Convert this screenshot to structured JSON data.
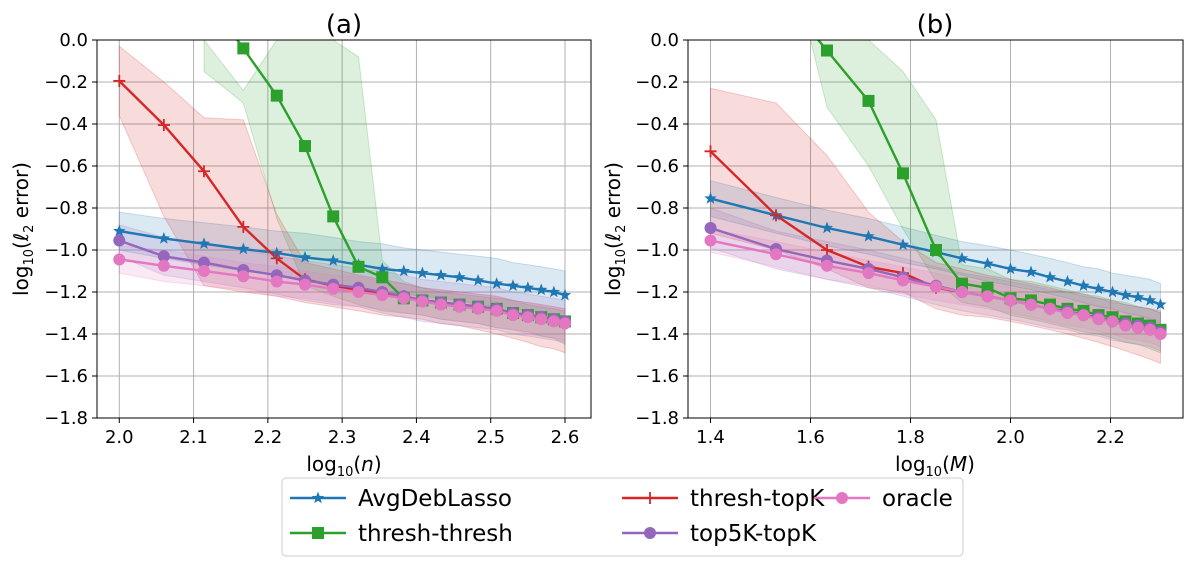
{
  "chart_data": [
    {
      "type": "line",
      "title": "(a)",
      "xlabel": "log10(n)",
      "ylabel": "log10(ℓ2 error)",
      "xlim": [
        1.97,
        2.635
      ],
      "ylim": [
        -1.8,
        0.0
      ],
      "xticks": [
        2.0,
        2.1,
        2.2,
        2.3,
        2.4,
        2.5,
        2.6
      ],
      "xtick_labels": [
        "2.0",
        "2.1",
        "2.2",
        "2.3",
        "2.4",
        "2.5",
        "2.6"
      ],
      "yticks": [
        0.0,
        -0.2,
        -0.4,
        -0.6,
        -0.8,
        -1.0,
        -1.2,
        -1.4,
        -1.6,
        -1.8
      ],
      "ytick_labels": [
        "0.0",
        "−0.2",
        "−0.4",
        "−0.6",
        "−0.8",
        "−1.0",
        "−1.2",
        "−1.4",
        "−1.6",
        "−1.8"
      ],
      "grid": true,
      "series": [
        {
          "name": "AvgDebLasso",
          "marker": "star",
          "x": [
            2.0,
            2.06,
            2.114,
            2.167,
            2.212,
            2.25,
            2.288,
            2.322,
            2.354,
            2.383,
            2.408,
            2.433,
            2.458,
            2.483,
            2.508,
            2.53,
            2.55,
            2.568,
            2.585,
            2.6
          ],
          "y": [
            -0.91,
            -0.945,
            -0.97,
            -0.995,
            -1.015,
            -1.035,
            -1.05,
            -1.07,
            -1.09,
            -1.1,
            -1.11,
            -1.12,
            -1.13,
            -1.145,
            -1.16,
            -1.17,
            -1.18,
            -1.19,
            -1.2,
            -1.215
          ],
          "band_upper": [
            -0.82,
            -0.85,
            -0.87,
            -0.89,
            -0.91,
            -0.92,
            -0.94,
            -0.96,
            -0.97,
            -0.99,
            -1.0,
            -1.01,
            -1.02,
            -1.03,
            -1.04,
            -1.06,
            -1.07,
            -1.08,
            -1.09,
            -1.1
          ],
          "band_lower": [
            -1.0,
            -1.04,
            -1.07,
            -1.1,
            -1.12,
            -1.15,
            -1.16,
            -1.18,
            -1.2,
            -1.21,
            -1.22,
            -1.23,
            -1.24,
            -1.26,
            -1.27,
            -1.28,
            -1.29,
            -1.3,
            -1.31,
            -1.32
          ]
        },
        {
          "name": "thresh-thresh",
          "marker": "square",
          "x": [
            2.167,
            2.212,
            2.25,
            2.288,
            2.322,
            2.354,
            2.383,
            2.408,
            2.433,
            2.458,
            2.483,
            2.508,
            2.53,
            2.55,
            2.568,
            2.585,
            2.6
          ],
          "y": [
            -0.04,
            -0.265,
            -0.505,
            -0.84,
            -1.08,
            -1.13,
            -1.23,
            -1.24,
            -1.25,
            -1.26,
            -1.27,
            -1.28,
            -1.3,
            -1.31,
            -1.32,
            -1.33,
            -1.34
          ],
          "extends_above_top": true,
          "band_x": [
            2.114,
            2.167,
            2.212,
            2.25,
            2.288,
            2.322,
            2.354,
            2.383,
            2.408,
            2.433,
            2.458,
            2.483,
            2.508,
            2.53,
            2.55,
            2.568,
            2.585,
            2.6
          ],
          "band_upper": [
            0.0,
            -0.24,
            0.0,
            0.0,
            0.0,
            -0.08,
            -1.05,
            -1.15,
            -1.18,
            -1.2,
            -1.21,
            -1.22,
            -1.23,
            -1.24,
            -1.26,
            -1.27,
            -1.28,
            -1.29
          ],
          "band_lower": [
            -0.15,
            -0.3,
            -0.85,
            -1.17,
            -1.22,
            -1.26,
            -1.29,
            -1.3,
            -1.31,
            -1.33,
            -1.34,
            -1.35,
            -1.37,
            -1.38,
            -1.39,
            -1.41,
            -1.42,
            -1.45
          ]
        },
        {
          "name": "thresh-topK",
          "marker": "plus",
          "x": [
            2.0,
            2.06,
            2.114,
            2.167,
            2.212,
            2.25,
            2.288,
            2.322,
            2.354,
            2.383,
            2.408,
            2.433,
            2.458,
            2.483,
            2.508,
            2.53,
            2.55,
            2.568,
            2.585,
            2.6
          ],
          "y": [
            -0.195,
            -0.405,
            -0.625,
            -0.89,
            -1.04,
            -1.14,
            -1.17,
            -1.19,
            -1.21,
            -1.22,
            -1.24,
            -1.25,
            -1.26,
            -1.27,
            -1.28,
            -1.3,
            -1.31,
            -1.32,
            -1.33,
            -1.34
          ],
          "band_upper": [
            -0.03,
            -0.2,
            -0.37,
            -0.38,
            -0.83,
            -1.06,
            -1.09,
            -1.12,
            -1.14,
            -1.16,
            -1.18,
            -1.19,
            -1.2,
            -1.21,
            -1.22,
            -1.24,
            -1.25,
            -1.26,
            -1.27,
            -1.28
          ],
          "band_lower": [
            -0.36,
            -0.84,
            -1.17,
            -1.2,
            -1.22,
            -1.25,
            -1.27,
            -1.29,
            -1.31,
            -1.32,
            -1.33,
            -1.35,
            -1.36,
            -1.38,
            -1.4,
            -1.42,
            -1.44,
            -1.46,
            -1.47,
            -1.49
          ]
        },
        {
          "name": "top5K-topK",
          "marker": "circle",
          "x": [
            2.0,
            2.06,
            2.114,
            2.167,
            2.212,
            2.25,
            2.288,
            2.322,
            2.354,
            2.383,
            2.408,
            2.433,
            2.458,
            2.483,
            2.508,
            2.53,
            2.55,
            2.568,
            2.585,
            2.6
          ],
          "y": [
            -0.955,
            -1.03,
            -1.06,
            -1.095,
            -1.12,
            -1.145,
            -1.165,
            -1.18,
            -1.2,
            -1.22,
            -1.24,
            -1.25,
            -1.26,
            -1.27,
            -1.28,
            -1.3,
            -1.31,
            -1.32,
            -1.33,
            -1.34
          ],
          "band_upper": [
            -0.88,
            -0.94,
            -0.97,
            -1.0,
            -1.03,
            -1.05,
            -1.07,
            -1.09,
            -1.1,
            -1.12,
            -1.14,
            -1.15,
            -1.16,
            -1.17,
            -1.18,
            -1.2,
            -1.21,
            -1.22,
            -1.23,
            -1.24
          ],
          "band_lower": [
            -1.03,
            -1.12,
            -1.15,
            -1.18,
            -1.21,
            -1.24,
            -1.26,
            -1.27,
            -1.3,
            -1.32,
            -1.34,
            -1.35,
            -1.36,
            -1.37,
            -1.38,
            -1.4,
            -1.41,
            -1.42,
            -1.43,
            -1.44
          ]
        },
        {
          "name": "oracle",
          "marker": "circle",
          "x": [
            2.0,
            2.06,
            2.114,
            2.167,
            2.212,
            2.25,
            2.288,
            2.322,
            2.354,
            2.383,
            2.408,
            2.433,
            2.458,
            2.483,
            2.508,
            2.53,
            2.55,
            2.568,
            2.585,
            2.6
          ],
          "y": [
            -1.045,
            -1.075,
            -1.1,
            -1.125,
            -1.15,
            -1.165,
            -1.185,
            -1.2,
            -1.215,
            -1.23,
            -1.245,
            -1.26,
            -1.27,
            -1.28,
            -1.29,
            -1.31,
            -1.32,
            -1.33,
            -1.34,
            -1.35
          ],
          "band_upper": [
            -0.98,
            -1.0,
            -1.03,
            -1.06,
            -1.08,
            -1.1,
            -1.12,
            -1.13,
            -1.15,
            -1.16,
            -1.18,
            -1.19,
            -1.2,
            -1.21,
            -1.22,
            -1.24,
            -1.25,
            -1.26,
            -1.27,
            -1.28
          ],
          "band_lower": [
            -1.11,
            -1.15,
            -1.17,
            -1.19,
            -1.22,
            -1.23,
            -1.25,
            -1.27,
            -1.28,
            -1.3,
            -1.31,
            -1.33,
            -1.34,
            -1.35,
            -1.37,
            -1.38,
            -1.4,
            -1.41,
            -1.42,
            -1.43
          ]
        }
      ]
    },
    {
      "type": "line",
      "title": "(b)",
      "xlabel": "log10(M)",
      "ylabel": "log10(ℓ2 error)",
      "xlim": [
        1.355,
        2.345
      ],
      "ylim": [
        -1.8,
        0.0
      ],
      "xticks": [
        1.4,
        1.6,
        1.8,
        2.0,
        2.2
      ],
      "xtick_labels": [
        "1.4",
        "1.6",
        "1.8",
        "2.0",
        "2.2"
      ],
      "yticks": [
        0.0,
        -0.2,
        -0.4,
        -0.6,
        -0.8,
        -1.0,
        -1.2,
        -1.4,
        -1.6,
        -1.8
      ],
      "ytick_labels": [
        "0.0",
        "−0.2",
        "−0.4",
        "−0.6",
        "−0.8",
        "−1.0",
        "−1.2",
        "−1.4",
        "−1.6",
        "−1.8"
      ],
      "grid": true,
      "series": [
        {
          "name": "AvgDebLasso",
          "marker": "star",
          "x": [
            1.4,
            1.531,
            1.633,
            1.716,
            1.785,
            1.851,
            1.903,
            1.954,
            2.0,
            2.041,
            2.079,
            2.114,
            2.146,
            2.176,
            2.204,
            2.23,
            2.255,
            2.279,
            2.3
          ],
          "y": [
            -0.755,
            -0.835,
            -0.895,
            -0.935,
            -0.975,
            -1.01,
            -1.04,
            -1.065,
            -1.09,
            -1.105,
            -1.13,
            -1.15,
            -1.17,
            -1.185,
            -1.2,
            -1.215,
            -1.225,
            -1.24,
            -1.26
          ],
          "band_upper": [
            -0.67,
            -0.75,
            -0.81,
            -0.85,
            -0.89,
            -0.93,
            -0.96,
            -0.98,
            -1.0,
            -1.02,
            -1.04,
            -1.06,
            -1.08,
            -1.09,
            -1.11,
            -1.12,
            -1.13,
            -1.14,
            -1.16
          ],
          "band_lower": [
            -0.84,
            -0.92,
            -0.98,
            -1.02,
            -1.06,
            -1.09,
            -1.12,
            -1.15,
            -1.17,
            -1.19,
            -1.21,
            -1.23,
            -1.25,
            -1.27,
            -1.28,
            -1.3,
            -1.31,
            -1.33,
            -1.35
          ]
        },
        {
          "name": "thresh-thresh",
          "marker": "square",
          "x": [
            1.633,
            1.716,
            1.785,
            1.851,
            1.903,
            1.954,
            2.0,
            2.041,
            2.079,
            2.114,
            2.146,
            2.176,
            2.204,
            2.23,
            2.255,
            2.279,
            2.3
          ],
          "y": [
            -0.05,
            -0.29,
            -0.635,
            -1.0,
            -1.16,
            -1.18,
            -1.23,
            -1.24,
            -1.26,
            -1.28,
            -1.29,
            -1.31,
            -1.32,
            -1.34,
            -1.35,
            -1.36,
            -1.38
          ],
          "extends_above_top": true,
          "band_x": [
            1.6,
            1.633,
            1.716,
            1.785,
            1.851,
            1.903,
            1.954,
            2.0,
            2.041,
            2.079,
            2.114,
            2.146,
            2.176,
            2.204,
            2.23,
            2.255,
            2.279,
            2.3
          ],
          "band_upper": [
            0.0,
            0.0,
            0.0,
            -0.15,
            -0.38,
            -1.07,
            -1.09,
            -1.14,
            -1.15,
            -1.17,
            -1.19,
            -1.21,
            -1.22,
            -1.24,
            -1.25,
            -1.27,
            -1.28,
            -1.3
          ],
          "band_lower": [
            0.0,
            -0.32,
            -0.6,
            -0.9,
            -1.15,
            -1.25,
            -1.27,
            -1.31,
            -1.33,
            -1.35,
            -1.37,
            -1.39,
            -1.4,
            -1.42,
            -1.44,
            -1.45,
            -1.47,
            -1.49
          ]
        },
        {
          "name": "thresh-topK",
          "marker": "plus",
          "x": [
            1.4,
            1.531,
            1.633,
            1.716,
            1.785,
            1.851,
            1.903,
            1.954,
            2.0,
            2.041,
            2.079,
            2.114,
            2.146,
            2.176,
            2.204,
            2.23,
            2.255,
            2.279,
            2.3
          ],
          "y": [
            -0.53,
            -0.835,
            -1.0,
            -1.08,
            -1.11,
            -1.18,
            -1.2,
            -1.22,
            -1.24,
            -1.26,
            -1.28,
            -1.29,
            -1.31,
            -1.32,
            -1.34,
            -1.35,
            -1.36,
            -1.37,
            -1.39
          ],
          "band_upper": [
            -0.23,
            -0.3,
            -0.55,
            -0.82,
            -0.96,
            -1.06,
            -1.09,
            -1.12,
            -1.14,
            -1.16,
            -1.18,
            -1.2,
            -1.21,
            -1.23,
            -1.24,
            -1.26,
            -1.27,
            -1.28,
            -1.29
          ],
          "band_lower": [
            -0.92,
            -1.0,
            -1.09,
            -1.18,
            -1.2,
            -1.28,
            -1.31,
            -1.32,
            -1.34,
            -1.36,
            -1.38,
            -1.4,
            -1.42,
            -1.44,
            -1.46,
            -1.48,
            -1.5,
            -1.52,
            -1.54
          ]
        },
        {
          "name": "top5K-topK",
          "marker": "circle",
          "x": [
            1.4,
            1.531,
            1.633,
            1.716,
            1.785,
            1.851,
            1.903,
            1.954,
            2.0,
            2.041,
            2.079,
            2.114,
            2.146,
            2.176,
            2.204,
            2.23,
            2.255,
            2.279,
            2.3
          ],
          "y": [
            -0.895,
            -0.995,
            -1.05,
            -1.09,
            -1.13,
            -1.17,
            -1.2,
            -1.22,
            -1.24,
            -1.26,
            -1.28,
            -1.29,
            -1.31,
            -1.32,
            -1.34,
            -1.35,
            -1.36,
            -1.37,
            -1.39
          ],
          "band_upper": [
            -0.8,
            -0.91,
            -0.96,
            -1.0,
            -1.04,
            -1.08,
            -1.11,
            -1.13,
            -1.15,
            -1.17,
            -1.19,
            -1.2,
            -1.22,
            -1.23,
            -1.25,
            -1.26,
            -1.27,
            -1.28,
            -1.3
          ],
          "band_lower": [
            -0.99,
            -1.09,
            -1.14,
            -1.18,
            -1.22,
            -1.26,
            -1.29,
            -1.31,
            -1.33,
            -1.35,
            -1.37,
            -1.38,
            -1.4,
            -1.41,
            -1.43,
            -1.44,
            -1.45,
            -1.46,
            -1.48
          ]
        },
        {
          "name": "oracle",
          "marker": "circle",
          "x": [
            1.4,
            1.531,
            1.633,
            1.716,
            1.785,
            1.851,
            1.903,
            1.954,
            2.0,
            2.041,
            2.079,
            2.114,
            2.146,
            2.176,
            2.204,
            2.23,
            2.255,
            2.279,
            2.3
          ],
          "y": [
            -0.955,
            -1.02,
            -1.075,
            -1.11,
            -1.145,
            -1.175,
            -1.2,
            -1.22,
            -1.24,
            -1.26,
            -1.28,
            -1.3,
            -1.31,
            -1.33,
            -1.34,
            -1.36,
            -1.37,
            -1.38,
            -1.4
          ],
          "band_upper": [
            -0.9,
            -0.96,
            -1.01,
            -1.05,
            -1.08,
            -1.11,
            -1.14,
            -1.16,
            -1.18,
            -1.2,
            -1.22,
            -1.24,
            -1.25,
            -1.27,
            -1.28,
            -1.3,
            -1.31,
            -1.32,
            -1.34
          ],
          "band_lower": [
            -1.01,
            -1.08,
            -1.14,
            -1.17,
            -1.21,
            -1.24,
            -1.26,
            -1.28,
            -1.3,
            -1.32,
            -1.34,
            -1.36,
            -1.37,
            -1.39,
            -1.4,
            -1.42,
            -1.43,
            -1.44,
            -1.46
          ]
        }
      ]
    }
  ],
  "legend": {
    "placement": "bottom-center",
    "entries": [
      {
        "name": "AvgDebLasso",
        "marker": "star",
        "color": "#1f77b4"
      },
      {
        "name": "thresh-thresh",
        "marker": "square",
        "color": "#2ca02c"
      },
      {
        "name": "thresh-topK",
        "marker": "plus",
        "color": "#d62728"
      },
      {
        "name": "top5K-topK",
        "marker": "circle",
        "color": "#9467bd"
      },
      {
        "name": "oracle",
        "marker": "circle",
        "color": "#e377c2"
      }
    ]
  },
  "colors": {
    "AvgDebLasso": "#1f77b4",
    "thresh-thresh": "#2ca02c",
    "thresh-topK": "#d62728",
    "top5K-topK": "#9467bd",
    "oracle": "#e377c2"
  }
}
